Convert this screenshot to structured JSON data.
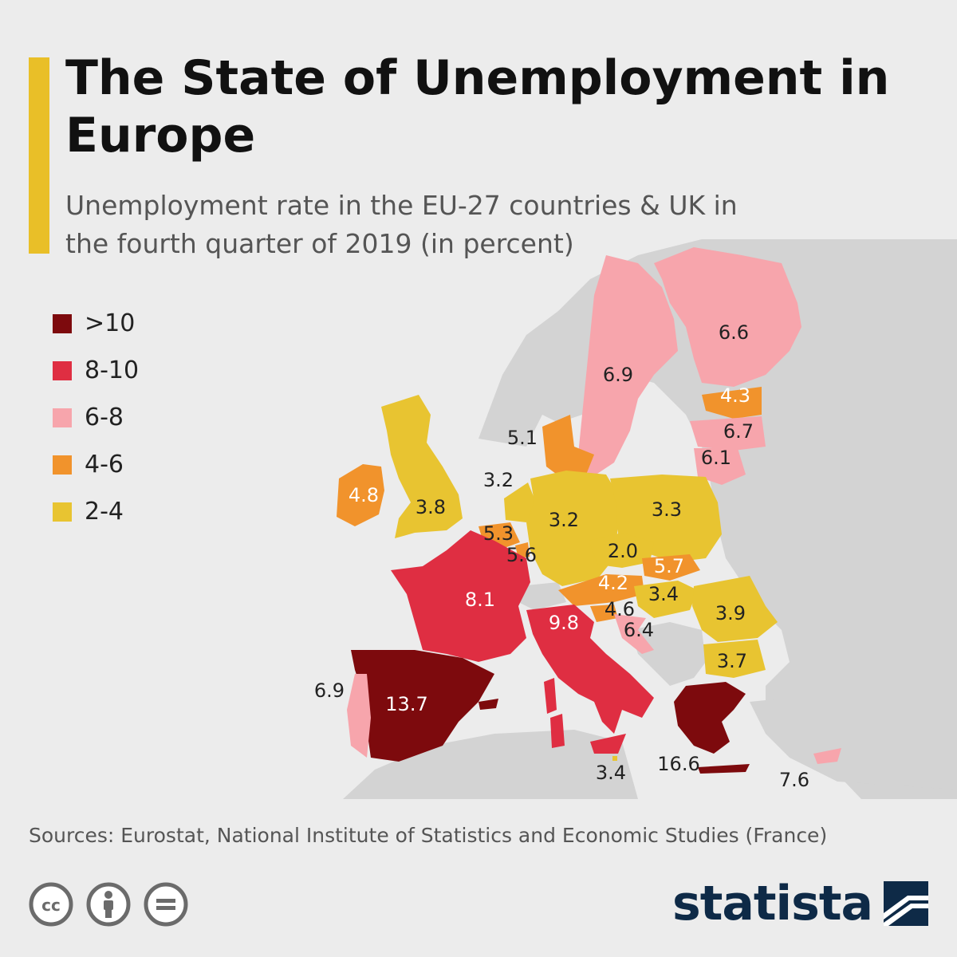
{
  "title": "The State of Unemployment in Europe",
  "subtitle": "Unemployment rate in the EU-27 countries & UK in the fourth quarter of 2019 (in percent)",
  "legend": [
    {
      "label": ">10",
      "color": "#7d0a0d"
    },
    {
      "label": "8-10",
      "color": "#df2e42"
    },
    {
      "label": "6-8",
      "color": "#f7a5ac"
    },
    {
      "label": "4-6",
      "color": "#f1932c"
    },
    {
      "label": "2-4",
      "color": "#e8c431"
    }
  ],
  "colors": {
    "background": "#ececec",
    "land_non_eu": "#d3d3d3",
    "sea": "#ececec",
    "accent": "#e9bf28",
    "brand": "#0e2a47"
  },
  "countries": {
    "finland": {
      "value": "6.6"
    },
    "sweden": {
      "value": "6.9"
    },
    "estonia": {
      "value": "4.3"
    },
    "latvia": {
      "value": "6.7"
    },
    "lithuania": {
      "value": "6.1"
    },
    "denmark": {
      "value": "5.1"
    },
    "netherlands": {
      "value": "3.2"
    },
    "ireland": {
      "value": "4.8"
    },
    "uk": {
      "value": "3.8"
    },
    "germany": {
      "value": "3.2"
    },
    "poland": {
      "value": "3.3"
    },
    "belgium": {
      "value": "5.3"
    },
    "luxembourg": {
      "value": "5.6"
    },
    "czechia": {
      "value": "2.0"
    },
    "slovakia": {
      "value": "5.7"
    },
    "austria": {
      "value": "4.2"
    },
    "hungary": {
      "value": "3.4"
    },
    "slovenia": {
      "value": "4.6"
    },
    "croatia": {
      "value": "6.4"
    },
    "romania": {
      "value": "3.9"
    },
    "bulgaria": {
      "value": "3.7"
    },
    "france": {
      "value": "8.1"
    },
    "italy": {
      "value": "9.8"
    },
    "spain": {
      "value": "13.7"
    },
    "portugal": {
      "value": "6.9"
    },
    "malta": {
      "value": "3.4"
    },
    "greece": {
      "value": "16.6"
    },
    "cyprus": {
      "value": "7.6"
    }
  },
  "sources": "Sources: Eurostat, National Institute of Statistics and Economic Studies (France)",
  "license_icons": [
    "cc-icon",
    "by-icon",
    "nd-icon"
  ],
  "brand": {
    "name": "statista"
  }
}
